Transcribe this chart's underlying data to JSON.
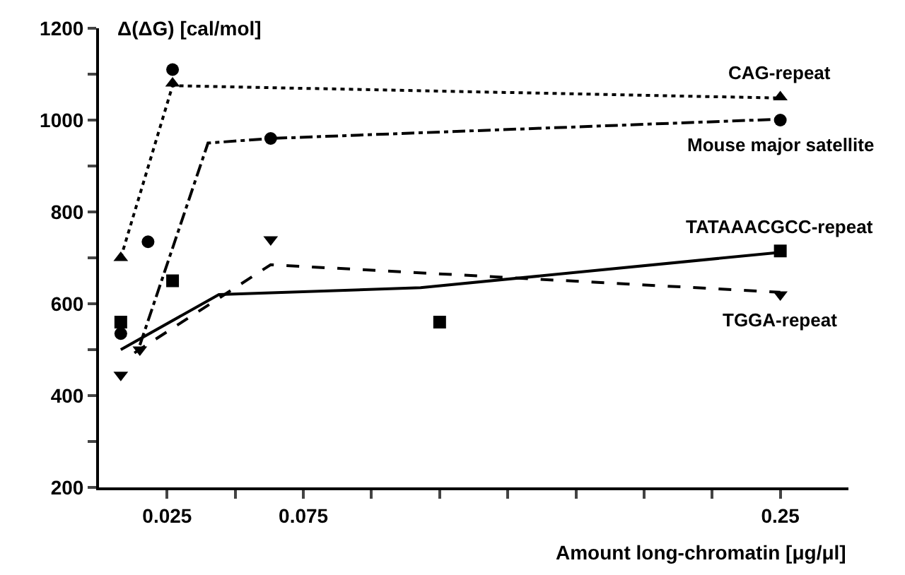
{
  "chart_data": {
    "type": "scatter",
    "xlabel": "Amount long-chromatin [μg/μl]",
    "ylabel": "Δ(ΔG) [cal/mol]",
    "xlim": [
      0,
      0.275
    ],
    "xticks": [
      {
        "value": 0.025,
        "label": "0.025"
      },
      {
        "value": 0.05,
        "label": null
      },
      {
        "value": 0.075,
        "label": "0.075"
      },
      {
        "value": 0.1,
        "label": null
      },
      {
        "value": 0.125,
        "label": null
      },
      {
        "value": 0.15,
        "label": null
      },
      {
        "value": 0.175,
        "label": null
      },
      {
        "value": 0.2,
        "label": null
      },
      {
        "value": 0.225,
        "label": null
      },
      {
        "value": 0.25,
        "label": "0.25"
      }
    ],
    "ylim": [
      200,
      1200
    ],
    "yticks": [
      200,
      {
        "value": 300,
        "label": null
      },
      400,
      {
        "value": 500,
        "label": null
      },
      600,
      {
        "value": 700,
        "label": null
      },
      800,
      {
        "value": 900,
        "label": null
      },
      1000,
      {
        "value": 1100,
        "label": null
      },
      1200
    ],
    "series": [
      {
        "name": "CAG-repeat",
        "color": "#000000",
        "marker": "triangle",
        "x": [
          0.008,
          0.027,
          0.25
        ],
        "values": [
          700,
          1080,
          1050
        ]
      },
      {
        "name": "Mouse major satellite",
        "color": "#000000",
        "marker": "circle",
        "x": [
          0.008,
          0.018,
          0.027,
          0.063,
          0.25
        ],
        "values": [
          535,
          735,
          1110,
          960,
          1000
        ]
      },
      {
        "name": "TATAAACGCC-repeat",
        "color": "#000000",
        "marker": "square",
        "x": [
          0.008,
          0.015,
          0.027,
          0.125,
          0.25
        ],
        "values": [
          560,
          null,
          650,
          560,
          715
        ]
      },
      {
        "name": "TGGA-repeat",
        "color": "#000000",
        "marker": "triangle-down",
        "x": [
          0.008,
          0.015,
          0.063,
          0.25
        ],
        "values": [
          445,
          500,
          740,
          620
        ]
      },
      {
        "type": "line",
        "color": "#000000",
        "marker": "none",
        "line_style": "dotted",
        "x": [
          0.008,
          0.027,
          0.25
        ],
        "values": [
          700,
          1075,
          1048
        ]
      },
      {
        "type": "line",
        "color": "#000000",
        "marker": "none",
        "line_style": "dashdot",
        "x": [
          0.015,
          0.04,
          0.063,
          0.25
        ],
        "values": [
          510,
          950,
          960,
          1002
        ]
      },
      {
        "type": "line",
        "color": "#000000",
        "marker": "none",
        "line_style": "solid",
        "x": [
          0.008,
          0.044,
          0.118,
          0.25
        ],
        "values": [
          500,
          620,
          635,
          712
        ]
      },
      {
        "type": "line",
        "color": "#000000",
        "marker": "none",
        "line_style": "dashed",
        "x": [
          0.013,
          0.063,
          0.25
        ],
        "values": [
          493,
          685,
          625
        ]
      }
    ]
  }
}
